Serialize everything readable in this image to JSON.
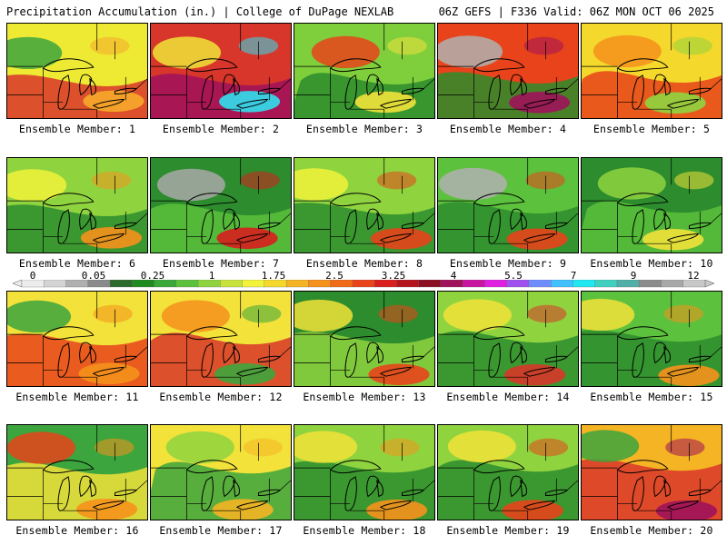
{
  "header": {
    "left": "Precipitation Accumulation (in.) | College of DuPage NEXLAB",
    "right": "06Z GEFS | F336 Valid: 06Z MON OCT 06 2025"
  },
  "colorbar": {
    "ticks": [
      "0",
      "0.05",
      "0.25",
      "1",
      "1.75",
      "2.5",
      "3.25",
      "4",
      "5.5",
      "7",
      "9",
      "12"
    ],
    "colors": [
      "#ececec",
      "#d4d4d4",
      "#b0b0b0",
      "#8a8a8a",
      "#2d6b2d",
      "#1f8a1f",
      "#39a839",
      "#5cc13c",
      "#8fd43f",
      "#c8e23c",
      "#f2f23a",
      "#f5d82c",
      "#f5b423",
      "#f5911c",
      "#f06a18",
      "#e8431a",
      "#d81e1e",
      "#b5141f",
      "#8a0f22",
      "#a0125a",
      "#c816a0",
      "#e01ee0",
      "#a050f0",
      "#6f8cff",
      "#40c0ff",
      "#20e8f0",
      "#40d0c0",
      "#50b0a8",
      "#8c8c8c",
      "#a8a8a8",
      "#c8c8c8"
    ]
  },
  "members": [
    {
      "label": "Ensemble Member: 1",
      "fill": "#eeea34",
      "d1": "#d8362a",
      "d2": "#3da53d",
      "d3": "#f6a82a"
    },
    {
      "label": "Ensemble Member: 2",
      "fill": "#d8362a",
      "d1": "#a0125a",
      "d2": "#f0e438",
      "d3": "#30e0f0"
    },
    {
      "label": "Ensemble Member: 3",
      "fill": "#7fce3c",
      "d1": "#2d8c2d",
      "d2": "#e8431a",
      "d3": "#f2e23a"
    },
    {
      "label": "Ensemble Member: 4",
      "fill": "#e8431a",
      "d1": "#2d8c2d",
      "d2": "#b0b0b0",
      "d3": "#a0125a"
    },
    {
      "label": "Ensemble Member: 5",
      "fill": "#f5d82c",
      "d1": "#e8431a",
      "d2": "#f5911c",
      "d3": "#8fd43f"
    },
    {
      "label": "Ensemble Member: 6",
      "fill": "#8fd43f",
      "d1": "#2d8c2d",
      "d2": "#f2f23a",
      "d3": "#f5911c"
    },
    {
      "label": "Ensemble Member: 7",
      "fill": "#2d8c2d",
      "d1": "#5cc13c",
      "d2": "#a8a8a8",
      "d3": "#d81e1e"
    },
    {
      "label": "Ensemble Member: 8",
      "fill": "#8fd43f",
      "d1": "#2d8c2d",
      "d2": "#f2f23a",
      "d3": "#e8431a"
    },
    {
      "label": "Ensemble Member: 9",
      "fill": "#5cc13c",
      "d1": "#2d8c2d",
      "d2": "#b0b0b0",
      "d3": "#e8431a"
    },
    {
      "label": "Ensemble Member: 10",
      "fill": "#2d8c2d",
      "d1": "#5cc13c",
      "d2": "#8fd43f",
      "d3": "#f2e23a"
    },
    {
      "label": "Ensemble Member: 11",
      "fill": "#f2e23a",
      "d1": "#e8431a",
      "d2": "#3da53d",
      "d3": "#f5911c"
    },
    {
      "label": "Ensemble Member: 12",
      "fill": "#f2e23a",
      "d1": "#d8362a",
      "d2": "#f5911c",
      "d3": "#3da53d"
    },
    {
      "label": "Ensemble Member: 13",
      "fill": "#2d8c2d",
      "d1": "#8fd43f",
      "d2": "#f2e23a",
      "d3": "#e8431a"
    },
    {
      "label": "Ensemble Member: 14",
      "fill": "#8fd43f",
      "d1": "#2d8c2d",
      "d2": "#f2e23a",
      "d3": "#d8362a"
    },
    {
      "label": "Ensemble Member: 15",
      "fill": "#5cc13c",
      "d1": "#2d8c2d",
      "d2": "#f2e23a",
      "d3": "#f5911c"
    },
    {
      "label": "Ensemble Member: 16",
      "fill": "#3da53d",
      "d1": "#f2e23a",
      "d2": "#e8431a",
      "d3": "#f5911c"
    },
    {
      "label": "Ensemble Member: 17",
      "fill": "#f2e23a",
      "d1": "#3da53d",
      "d2": "#8fd43f",
      "d3": "#f5b423"
    },
    {
      "label": "Ensemble Member: 18",
      "fill": "#8fd43f",
      "d1": "#2d8c2d",
      "d2": "#f2e23a",
      "d3": "#f5911c"
    },
    {
      "label": "Ensemble Member: 19",
      "fill": "#8fd43f",
      "d1": "#2d8c2d",
      "d2": "#f2e23a",
      "d3": "#e8431a"
    },
    {
      "label": "Ensemble Member: 20",
      "fill": "#f5b423",
      "d1": "#d8362a",
      "d2": "#3da53d",
      "d3": "#a0125a"
    }
  ]
}
